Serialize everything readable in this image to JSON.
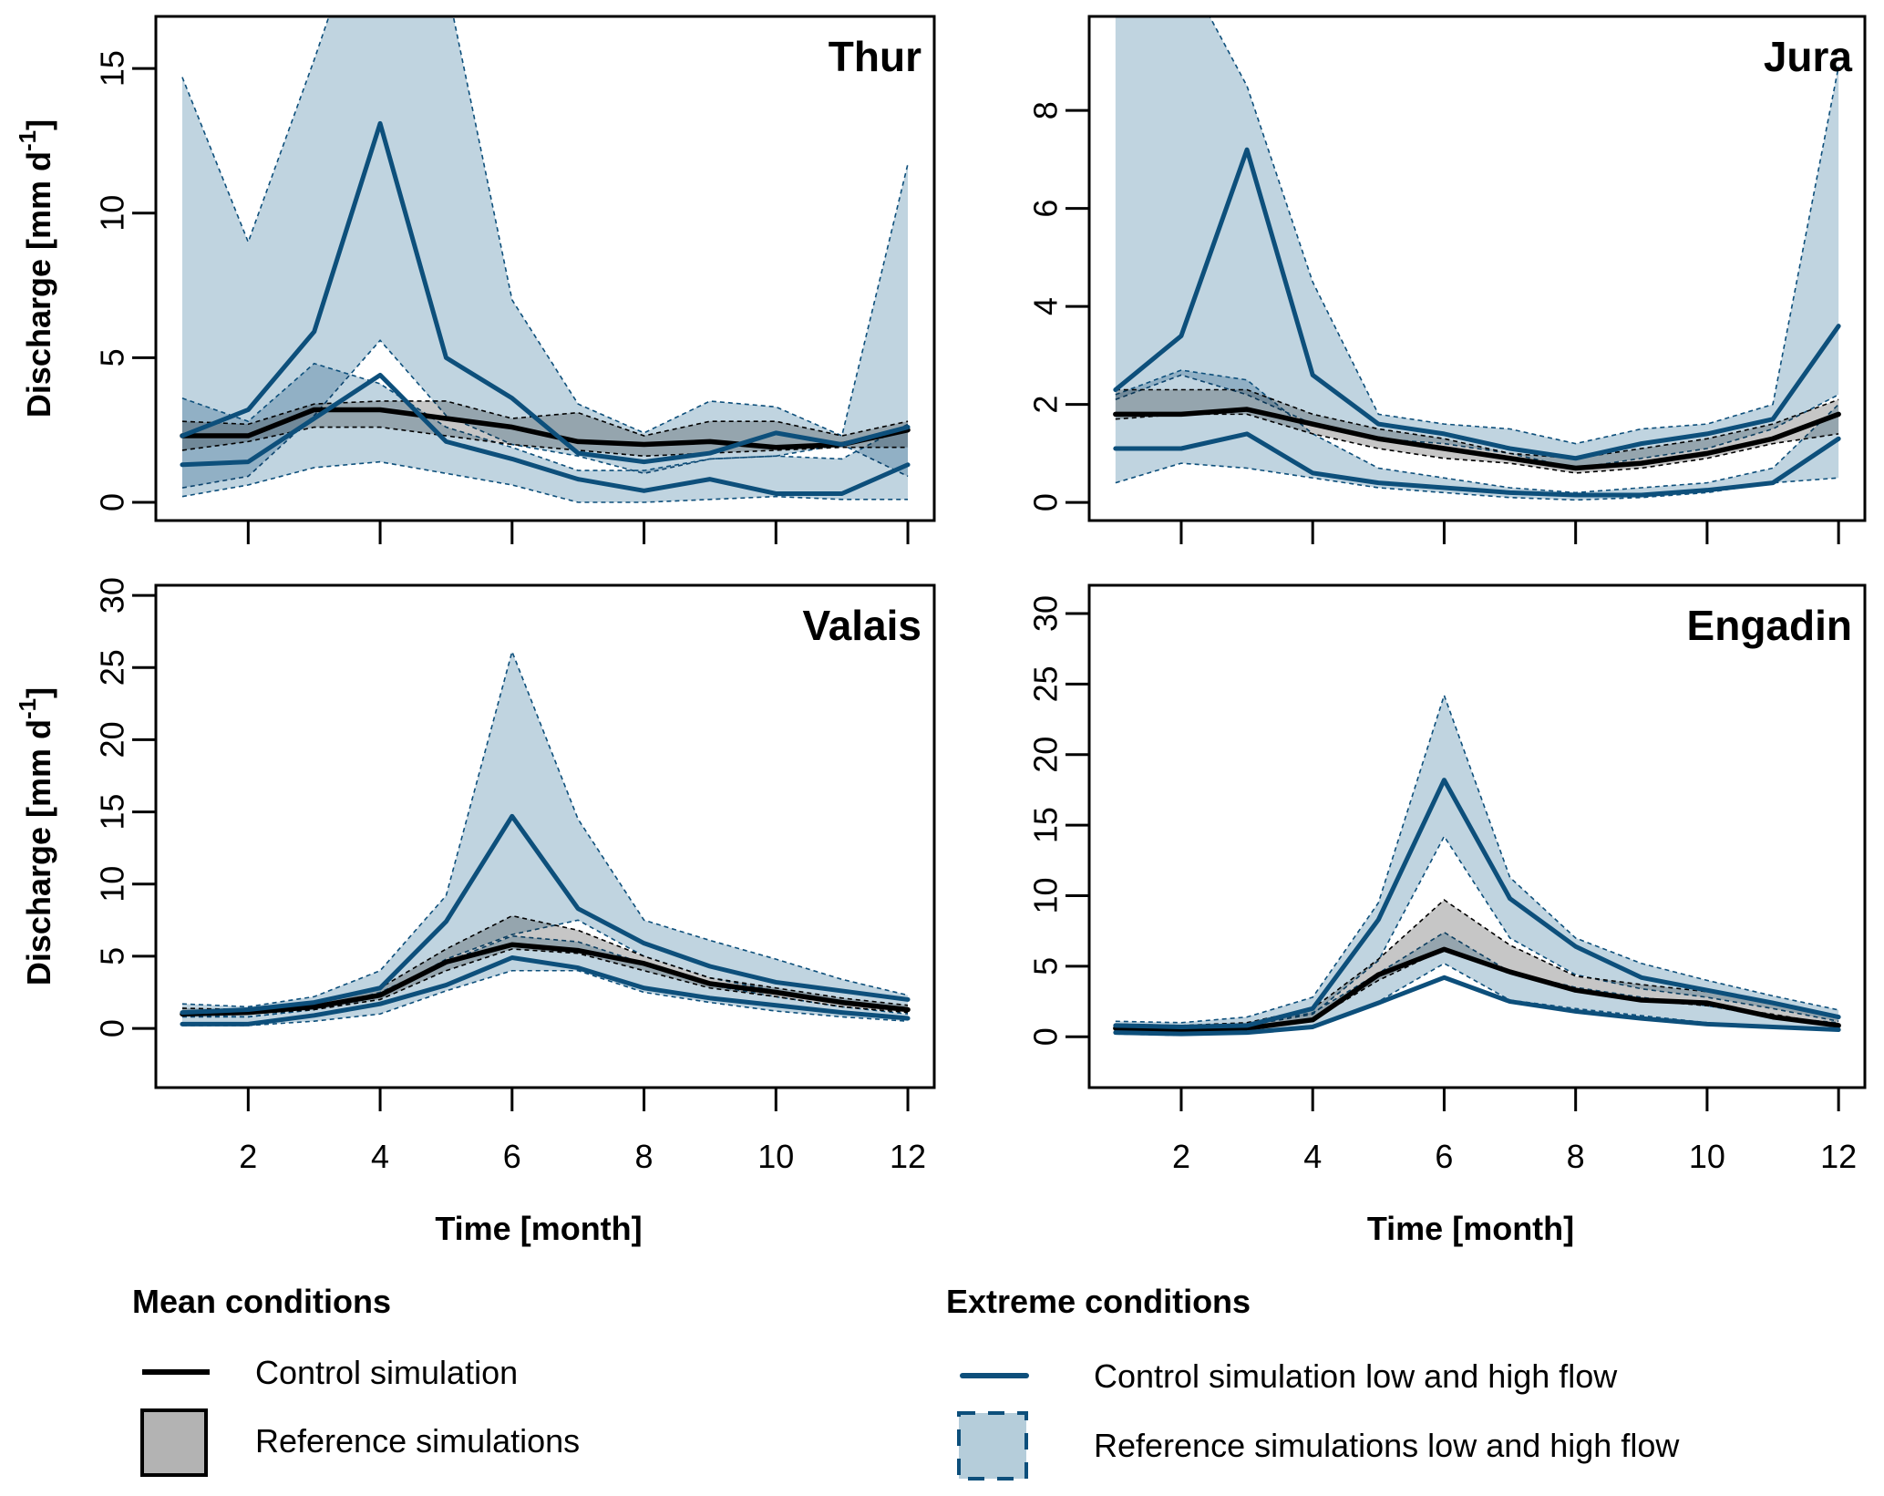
{
  "chart_data": [
    {
      "type": "line",
      "title": "Thur",
      "xlabel": "",
      "ylabel": "Discharge [mm d-1]",
      "ylabel_main": "Discharge [mm d",
      "ylabel_sup": "-1",
      "ylabel_end": "]",
      "x": [
        1,
        2,
        3,
        4,
        5,
        6,
        7,
        8,
        9,
        10,
        11,
        12
      ],
      "xlim": [
        0.6,
        12.4
      ],
      "ylim": [
        -0.63,
        16.8
      ],
      "xticks": [
        2,
        4,
        6,
        8,
        10,
        12
      ],
      "yticks": [
        0,
        5,
        10,
        15
      ],
      "xtick_labels_shown": false,
      "series": [
        {
          "name": "Reference simulations low and high flow (upper band)",
          "kind": "band",
          "style": "extreme",
          "upper": [
            14.7,
            9.0,
            15.3,
            22.0,
            18.0,
            7.0,
            3.4,
            2.4,
            3.5,
            3.3,
            2.3,
            11.7
          ],
          "lower": [
            0.5,
            0.9,
            3.0,
            5.6,
            3.0,
            2.0,
            1.6,
            1.0,
            1.5,
            1.6,
            2.0,
            0.9
          ]
        },
        {
          "name": "Reference simulations low and high flow (lower band)",
          "kind": "band",
          "style": "extreme",
          "upper": [
            3.6,
            2.8,
            4.8,
            4.1,
            2.6,
            1.9,
            1.1,
            1.1,
            1.5,
            1.6,
            1.5,
            2.7
          ],
          "lower": [
            0.2,
            0.6,
            1.2,
            1.4,
            1.0,
            0.6,
            0.0,
            0.0,
            0.1,
            0.2,
            0.1,
            0.1
          ]
        },
        {
          "name": "Reference simulations",
          "kind": "band",
          "style": "mean",
          "upper": [
            2.8,
            2.7,
            3.4,
            3.5,
            3.5,
            2.9,
            3.1,
            2.3,
            2.8,
            2.8,
            2.3,
            2.8
          ],
          "lower": [
            1.8,
            2.1,
            2.6,
            2.6,
            2.3,
            2.0,
            1.8,
            1.6,
            1.7,
            1.8,
            1.9,
            1.9
          ]
        },
        {
          "name": "Control simulation",
          "kind": "line",
          "style": "mean",
          "values": [
            2.3,
            2.3,
            3.2,
            3.2,
            2.9,
            2.6,
            2.1,
            2.0,
            2.1,
            1.9,
            2.0,
            2.5
          ]
        },
        {
          "name": "Control simulation high flow",
          "kind": "line",
          "style": "extreme",
          "values": [
            2.3,
            3.2,
            5.9,
            13.1,
            5.0,
            3.6,
            1.7,
            1.4,
            1.7,
            2.4,
            2.0,
            2.6
          ]
        },
        {
          "name": "Control simulation low flow (mid)",
          "kind": "line",
          "style": "extreme",
          "values": [
            1.3,
            1.4,
            2.9,
            4.4,
            2.1,
            1.5,
            0.8,
            0.4,
            0.8,
            0.3,
            0.3,
            1.3
          ]
        }
      ]
    },
    {
      "type": "line",
      "title": "Jura",
      "xlabel": "",
      "ylabel": "",
      "x": [
        1,
        2,
        3,
        4,
        5,
        6,
        7,
        8,
        9,
        10,
        11,
        12
      ],
      "xlim": [
        0.6,
        12.4
      ],
      "ylim": [
        -0.37,
        9.92
      ],
      "xticks": [
        2,
        4,
        6,
        8,
        10,
        12
      ],
      "yticks": [
        0,
        2,
        4,
        6,
        8
      ],
      "xtick_labels_shown": false,
      "series": [
        {
          "name": "Reference simulations low and high flow (upper band)",
          "kind": "band",
          "style": "extreme",
          "upper": [
            11.0,
            11.0,
            8.5,
            4.5,
            1.8,
            1.6,
            1.5,
            1.2,
            1.5,
            1.6,
            2.0,
            8.9
          ],
          "lower": [
            2.1,
            2.6,
            2.2,
            1.6,
            1.3,
            1.2,
            1.0,
            0.7,
            0.9,
            1.1,
            1.5,
            2.2
          ]
        },
        {
          "name": "Reference simulations low and high flow (lower band)",
          "kind": "band",
          "style": "extreme",
          "upper": [
            2.2,
            2.7,
            2.5,
            1.4,
            0.7,
            0.5,
            0.3,
            0.2,
            0.3,
            0.4,
            0.7,
            2.0
          ],
          "lower": [
            0.4,
            0.8,
            0.7,
            0.5,
            0.3,
            0.2,
            0.1,
            0.05,
            0.1,
            0.2,
            0.4,
            0.5
          ]
        },
        {
          "name": "Reference simulations",
          "kind": "band",
          "style": "mean",
          "upper": [
            2.3,
            2.3,
            2.3,
            1.8,
            1.5,
            1.3,
            1.0,
            0.9,
            1.1,
            1.3,
            1.6,
            2.1
          ],
          "lower": [
            1.7,
            1.8,
            1.8,
            1.4,
            1.1,
            0.9,
            0.8,
            0.6,
            0.7,
            0.9,
            1.2,
            1.4
          ]
        },
        {
          "name": "Control simulation",
          "kind": "line",
          "style": "mean",
          "values": [
            1.8,
            1.8,
            1.9,
            1.6,
            1.3,
            1.1,
            0.9,
            0.7,
            0.8,
            1.0,
            1.3,
            1.8
          ]
        },
        {
          "name": "Control simulation high flow",
          "kind": "line",
          "style": "extreme",
          "values": [
            2.3,
            3.4,
            7.2,
            2.6,
            1.6,
            1.4,
            1.1,
            0.9,
            1.2,
            1.4,
            1.7,
            3.6
          ]
        },
        {
          "name": "Control simulation low flow",
          "kind": "line",
          "style": "extreme",
          "values": [
            1.1,
            1.1,
            1.4,
            0.6,
            0.4,
            0.3,
            0.2,
            0.15,
            0.15,
            0.25,
            0.4,
            1.3
          ]
        }
      ]
    },
    {
      "type": "line",
      "title": "Valais",
      "xlabel": "Time [month]",
      "ylabel": "Discharge [mm d-1]",
      "ylabel_main": "Discharge [mm d",
      "ylabel_sup": "-1",
      "ylabel_end": "]",
      "x": [
        1,
        2,
        3,
        4,
        5,
        6,
        7,
        8,
        9,
        10,
        11,
        12
      ],
      "xlim": [
        0.6,
        12.4
      ],
      "ylim": [
        -4.1,
        30.7
      ],
      "xticks": [
        2,
        4,
        6,
        8,
        10,
        12
      ],
      "yticks": [
        0,
        5,
        10,
        15,
        20,
        25,
        30
      ],
      "xtick_labels_shown": true,
      "series": [
        {
          "name": "Reference simulations low and high flow (upper band)",
          "kind": "band",
          "style": "extreme",
          "upper": [
            1.7,
            1.5,
            2.2,
            4.0,
            9.2,
            26.1,
            14.5,
            7.5,
            6.1,
            4.8,
            3.4,
            2.3
          ],
          "lower": [
            0.8,
            0.8,
            1.3,
            2.2,
            4.8,
            6.5,
            7.5,
            5.0,
            3.5,
            2.6,
            1.8,
            1.2
          ]
        },
        {
          "name": "Reference simulations low and high flow (lower band)",
          "kind": "band",
          "style": "extreme",
          "upper": [
            0.9,
            0.8,
            1.3,
            2.5,
            4.6,
            6.4,
            6.0,
            4.5,
            3.0,
            2.2,
            1.5,
            1.0
          ],
          "lower": [
            0.2,
            0.2,
            0.5,
            1.0,
            2.6,
            4.0,
            4.0,
            2.5,
            1.8,
            1.2,
            0.8,
            0.5
          ]
        },
        {
          "name": "Reference simulations",
          "kind": "band",
          "style": "mean",
          "upper": [
            1.4,
            1.3,
            1.8,
            2.8,
            5.5,
            7.8,
            6.8,
            5.0,
            3.5,
            2.8,
            2.1,
            1.6
          ],
          "lower": [
            0.9,
            1.0,
            1.3,
            2.0,
            4.0,
            5.5,
            5.2,
            4.0,
            2.8,
            2.2,
            1.5,
            1.1
          ]
        },
        {
          "name": "Control simulation",
          "kind": "line",
          "style": "mean",
          "values": [
            1.0,
            1.1,
            1.5,
            2.3,
            4.6,
            5.8,
            5.4,
            4.5,
            3.1,
            2.5,
            1.8,
            1.3
          ]
        },
        {
          "name": "Control simulation high flow",
          "kind": "line",
          "style": "extreme",
          "values": [
            1.1,
            1.3,
            1.8,
            2.8,
            7.4,
            14.7,
            8.3,
            5.9,
            4.3,
            3.2,
            2.6,
            2.0
          ]
        },
        {
          "name": "Control simulation low flow",
          "kind": "line",
          "style": "extreme",
          "values": [
            0.3,
            0.3,
            0.9,
            1.7,
            3.0,
            4.9,
            4.2,
            2.8,
            2.1,
            1.6,
            1.1,
            0.7
          ]
        }
      ]
    },
    {
      "type": "line",
      "title": "Engadin",
      "xlabel": "Time [month]",
      "ylabel": "",
      "x": [
        1,
        2,
        3,
        4,
        5,
        6,
        7,
        8,
        9,
        10,
        11,
        12
      ],
      "xlim": [
        0.6,
        12.4
      ],
      "ylim": [
        -3.6,
        32.0
      ],
      "xticks": [
        2,
        4,
        6,
        8,
        10,
        12
      ],
      "yticks": [
        0,
        5,
        10,
        15,
        20,
        25,
        30
      ],
      "xtick_labels_shown": true,
      "series": [
        {
          "name": "Reference simulations low and high flow (upper band)",
          "kind": "band",
          "style": "extreme",
          "upper": [
            1.1,
            1.0,
            1.4,
            2.8,
            9.5,
            24.2,
            11.3,
            7.0,
            5.2,
            4.0,
            2.9,
            1.9
          ],
          "lower": [
            0.6,
            0.5,
            0.8,
            1.6,
            5.4,
            14.2,
            7.0,
            4.4,
            3.4,
            2.8,
            2.0,
            1.1
          ]
        },
        {
          "name": "Reference simulations low and high flow (lower band)",
          "kind": "band",
          "style": "extreme",
          "upper": [
            0.8,
            0.7,
            0.9,
            1.7,
            4.5,
            7.4,
            4.6,
            3.5,
            2.8,
            2.2,
            1.4,
            1.0
          ],
          "lower": [
            0.2,
            0.1,
            0.3,
            0.8,
            2.5,
            5.2,
            2.6,
            2.0,
            1.5,
            1.0,
            0.7,
            0.5
          ]
        },
        {
          "name": "Reference simulations",
          "kind": "band",
          "style": "mean",
          "upper": [
            0.9,
            0.8,
            1.0,
            2.0,
            5.5,
            9.7,
            6.5,
            4.3,
            3.7,
            3.2,
            2.4,
            1.3
          ],
          "lower": [
            0.4,
            0.3,
            0.5,
            1.2,
            4.0,
            6.2,
            4.6,
            3.2,
            2.6,
            2.2,
            1.6,
            0.8
          ]
        },
        {
          "name": "Control simulation",
          "kind": "line",
          "style": "mean",
          "values": [
            0.6,
            0.5,
            0.6,
            1.2,
            4.4,
            6.2,
            4.6,
            3.3,
            2.6,
            2.4,
            1.4,
            0.8
          ]
        },
        {
          "name": "Control simulation high flow",
          "kind": "line",
          "style": "extreme",
          "values": [
            0.8,
            0.7,
            0.8,
            2.0,
            8.3,
            18.2,
            9.8,
            6.4,
            4.2,
            3.3,
            2.4,
            1.4
          ]
        },
        {
          "name": "Control simulation low flow",
          "kind": "line",
          "style": "extreme",
          "values": [
            0.3,
            0.2,
            0.3,
            0.7,
            2.4,
            4.2,
            2.5,
            1.8,
            1.3,
            0.9,
            0.7,
            0.5
          ]
        }
      ]
    }
  ],
  "legend": {
    "mean_heading": "Mean conditions",
    "extreme_heading": "Extreme conditions",
    "items": [
      {
        "label": "Control simulation",
        "group": "mean",
        "kind": "line"
      },
      {
        "label": "Reference simulations",
        "group": "mean",
        "kind": "box"
      },
      {
        "label": "Control simulation low and high flow",
        "group": "extreme",
        "kind": "line"
      },
      {
        "label": "Reference simulations low and high flow",
        "group": "extreme",
        "kind": "box"
      }
    ]
  },
  "colors": {
    "extreme_fill": "#b5cdda",
    "extreme_line": "#0d4f7b",
    "mean_fill": "#b3b3b3",
    "mean_line": "#000000",
    "overlap_fill": "#7f97a5"
  }
}
